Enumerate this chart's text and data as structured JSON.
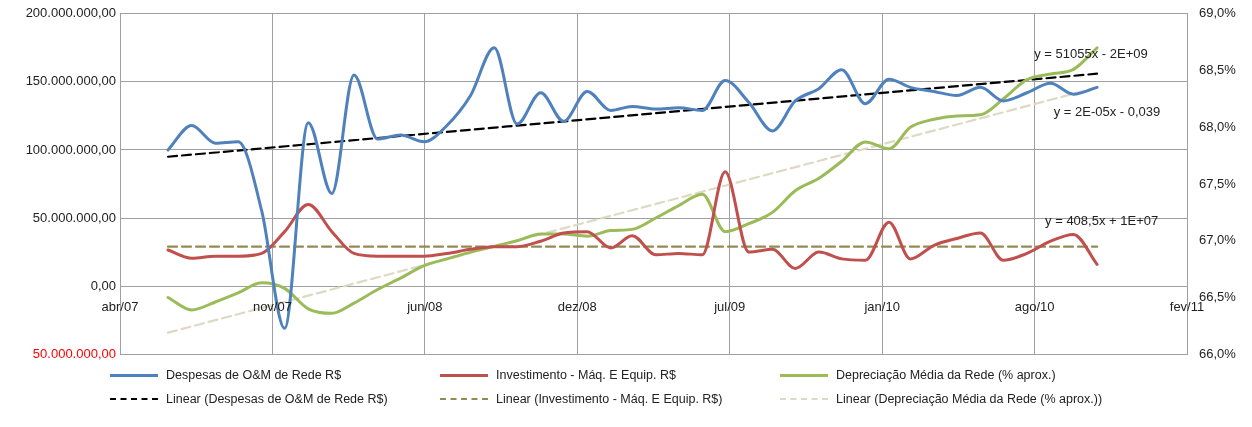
{
  "chart_data": {
    "type": "line",
    "x": [
      "2007-07-01",
      "2007-08-01",
      "2007-09-01",
      "2007-10-01",
      "2007-11-01",
      "2007-12-01",
      "2008-01-01",
      "2008-02-01",
      "2008-03-01",
      "2008-04-01",
      "2008-05-01",
      "2008-06-01",
      "2008-07-01",
      "2008-08-01",
      "2008-09-01",
      "2008-10-01",
      "2008-11-01",
      "2008-12-01",
      "2009-01-01",
      "2009-02-01",
      "2009-03-01",
      "2009-04-01",
      "2009-05-01",
      "2009-06-01",
      "2009-07-01",
      "2009-08-01",
      "2009-09-01",
      "2009-10-01",
      "2009-11-01",
      "2009-12-01",
      "2010-01-01",
      "2010-02-01",
      "2010-03-01",
      "2010-04-01",
      "2010-05-01",
      "2010-06-01",
      "2010-07-01",
      "2010-08-01",
      "2010-09-01",
      "2010-10-01",
      "2010-11-01"
    ],
    "series": [
      {
        "name": "Despesas de O&M de Rede R$",
        "color": "#4f81bd",
        "values": [
          100000000,
          118000000,
          105000000,
          106000000,
          55000000,
          -31000000,
          120000000,
          68000000,
          155000000,
          108000000,
          111000000,
          106000000,
          118000000,
          140000000,
          175000000,
          119000000,
          142000000,
          121000000,
          143000000,
          129000000,
          132000000,
          130000000,
          131000000,
          129000000,
          151000000,
          135000000,
          114000000,
          136000000,
          145000000,
          159000000,
          134000000,
          152000000,
          146000000,
          143000000,
          140000000,
          146000000,
          136000000,
          142000000,
          149000000,
          141000000,
          146000000
        ]
      },
      {
        "name": "Investimento - Máq. E Equip. R$",
        "color": "#c0504d",
        "values": [
          26500000,
          20500000,
          22000000,
          22000000,
          24000000,
          40000000,
          60000000,
          40000000,
          24000000,
          22000000,
          22000000,
          22000000,
          24000000,
          27000000,
          29000000,
          29000000,
          33000000,
          39000000,
          40000000,
          28000000,
          37000000,
          23000000,
          24000000,
          23000000,
          84000000,
          25000000,
          27000000,
          13000000,
          25000000,
          20000000,
          19000000,
          47000000,
          20000000,
          30000000,
          35000000,
          39000000,
          19000000,
          24000000,
          33000000,
          38000000,
          16000000
        ]
      },
      {
        "name": "Depreciação Média da Rede (% aprox.)",
        "color": "#9bbb59",
        "axis": "y2",
        "values": [
          66.5,
          66.39,
          66.46,
          66.54,
          66.63,
          66.58,
          66.4,
          66.36,
          66.45,
          66.57,
          66.67,
          66.78,
          66.84,
          66.9,
          66.95,
          67.0,
          67.06,
          67.06,
          67.04,
          67.09,
          67.1,
          67.2,
          67.31,
          67.41,
          67.08,
          67.15,
          67.25,
          67.44,
          67.55,
          67.7,
          67.87,
          67.81,
          68.0,
          68.07,
          68.1,
          68.11,
          68.25,
          68.42,
          68.47,
          68.51,
          68.7
        ]
      },
      {
        "name": "Linear (Despesas de O&M de Rede R$)",
        "color": "#000000",
        "line_style": "dashed",
        "x": [
          "2007-07-01",
          "2010-11-01"
        ],
        "values": [
          95000000,
          156000000
        ]
      },
      {
        "name": "Linear (Investimento - Máq. E Equip. R$)",
        "color": "#948a54",
        "line_style": "dashed",
        "x": [
          "2007-07-01",
          "2010-11-01"
        ],
        "values": [
          29000000,
          29000000
        ]
      },
      {
        "name": "Linear (Depreciação Média da Rede (% aprox.))",
        "color": "#ddd9c3",
        "line_style": "dashed",
        "axis": "y2",
        "x": [
          "2007-07-01",
          "2010-11-01"
        ],
        "values": [
          66.19,
          68.35
        ]
      }
    ],
    "xlim": [
      "2007-04-29",
      "2011-02-27"
    ],
    "xticks": [
      {
        "value": "2007-04-29",
        "label": "abr/07"
      },
      {
        "value": "2007-11-15",
        "label": "nov/07"
      },
      {
        "value": "2008-06-02",
        "label": "jun/08"
      },
      {
        "value": "2008-12-19",
        "label": "dez/08"
      },
      {
        "value": "2009-07-07",
        "label": "jul/09"
      },
      {
        "value": "2010-01-23",
        "label": "jan/10"
      },
      {
        "value": "2010-08-11",
        "label": "ago/10"
      },
      {
        "value": "2011-02-27",
        "label": "fev/11"
      }
    ],
    "ylim": [
      -50000000,
      200000000
    ],
    "yticks": [
      {
        "value": -50000000,
        "label": "50.000.000,00"
      },
      {
        "value": 0,
        "label": "0,00"
      },
      {
        "value": 50000000,
        "label": "50.000.000,00"
      },
      {
        "value": 100000000,
        "label": "100.000.000,00"
      },
      {
        "value": 150000000,
        "label": "150.000.000,00"
      },
      {
        "value": 200000000,
        "label": "200.000.000,00"
      }
    ],
    "y2lim": [
      66,
      69
    ],
    "y2ticks": [
      {
        "value": 66,
        "label": "66,0%"
      },
      {
        "value": 66.5,
        "label": "66,5%"
      },
      {
        "value": 67,
        "label": "67,0%"
      },
      {
        "value": 67.5,
        "label": "67,5%"
      },
      {
        "value": 68,
        "label": "68,0%"
      },
      {
        "value": 68.5,
        "label": "68,5%"
      },
      {
        "value": 69,
        "label": "69,0%"
      }
    ],
    "annotations": [
      "y = 51055x - 2E+09",
      "y = 2E-05x - 0,039",
      "y = 408,5x + 1E+07"
    ],
    "grid": true,
    "legend": "bottom",
    "marker": "none",
    "line_style": "solid"
  }
}
